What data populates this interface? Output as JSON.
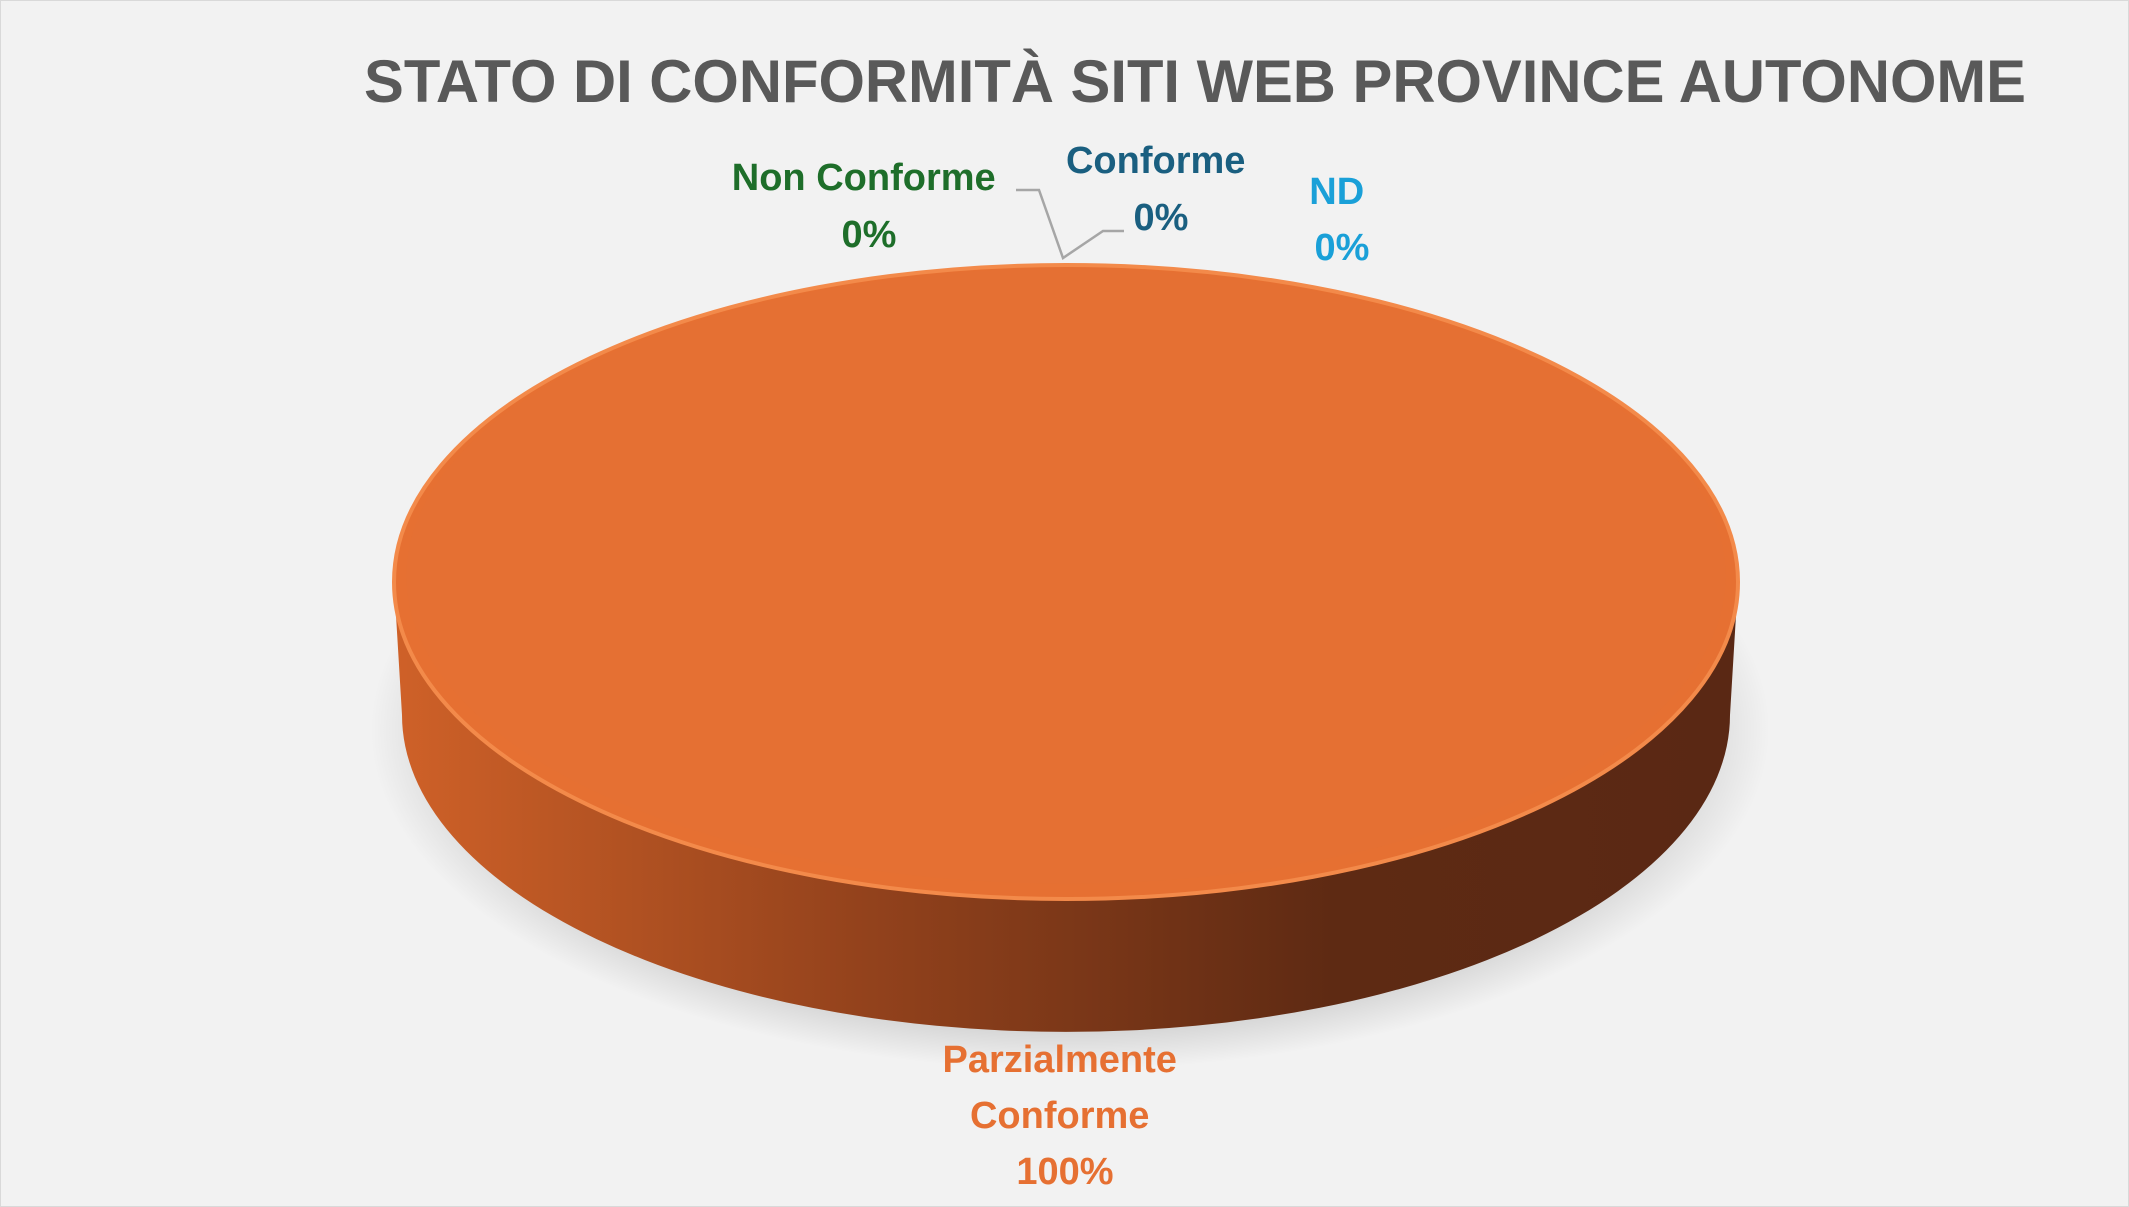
{
  "chart_data": {
    "type": "pie",
    "style": "3d",
    "title": "STATO DI CONFORMITÀ SITI WEB PROVINCE AUTONOME",
    "slices": [
      {
        "label": "Non Conforme",
        "value": 0,
        "percent_label": "0%",
        "color": "#1e6e2a"
      },
      {
        "label": "Conforme",
        "value": 0,
        "percent_label": "0%",
        "color": "#1a5f80"
      },
      {
        "label": "ND",
        "value": 0,
        "percent_label": "0%",
        "color": "#1aa0d8"
      },
      {
        "label_lines": [
          "Parzialmente",
          "Conforme"
        ],
        "value": 100,
        "percent_label": "100%",
        "color": "#e67032"
      }
    ],
    "legend": "none",
    "background": "#f2f2f2"
  }
}
